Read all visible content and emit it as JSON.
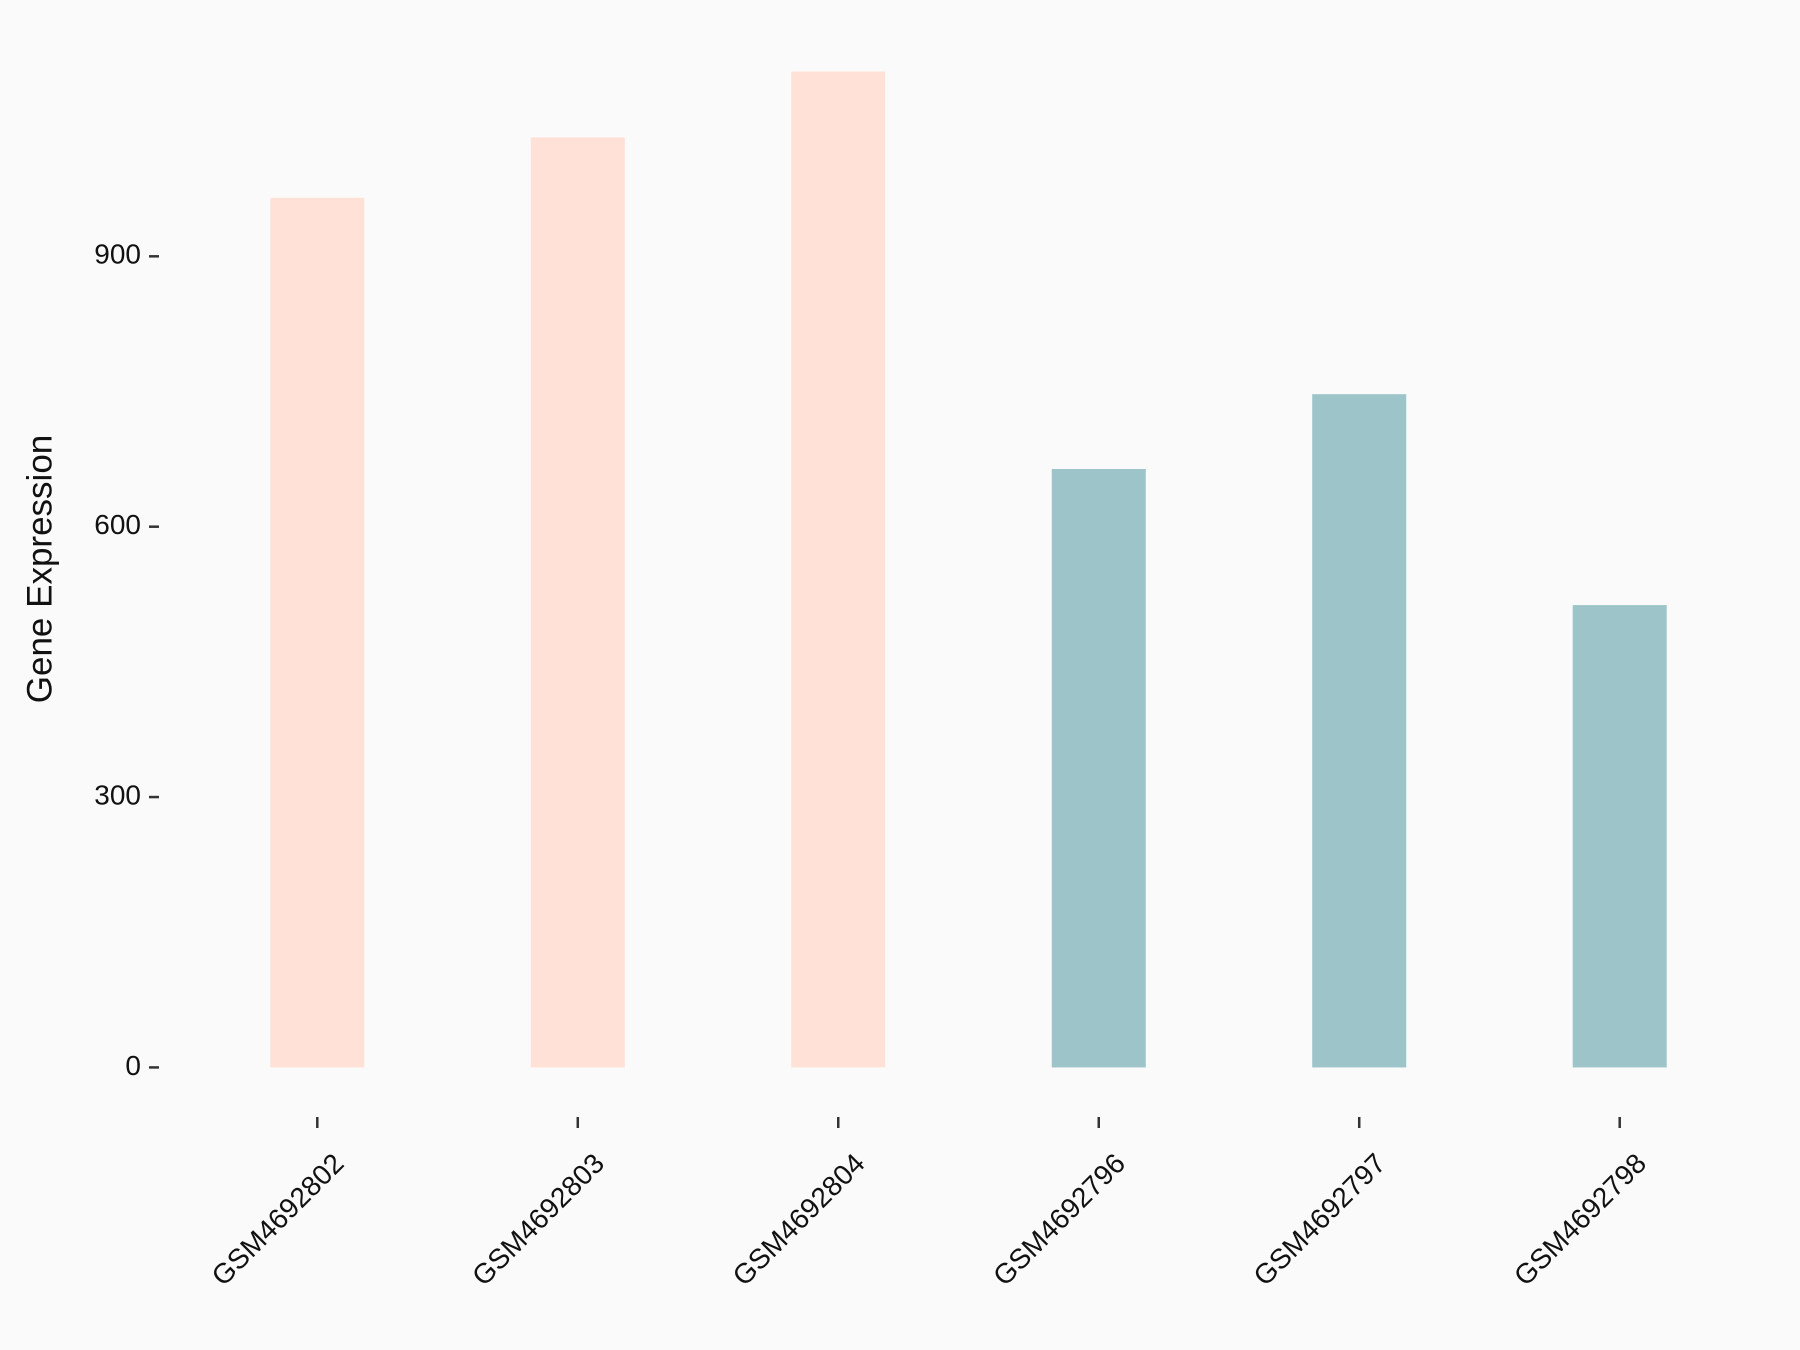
{
  "chart_data": {
    "type": "bar",
    "y_label": "Gene Expression",
    "categories": [
      "GSM4692802",
      "GSM4692803",
      "GSM4692804",
      "GSM4692796",
      "GSM4692797",
      "GSM4692798"
    ],
    "values": [
      965,
      1032,
      1105,
      664,
      747,
      513
    ],
    "colors": [
      "#ffe1d7",
      "#ffe1d7",
      "#ffe1d7",
      "#9dc4c8",
      "#9dc4c8",
      "#9dc4c8"
    ],
    "ylim": [
      -55,
      1160
    ],
    "yticks": [
      0,
      300,
      600,
      900
    ]
  }
}
